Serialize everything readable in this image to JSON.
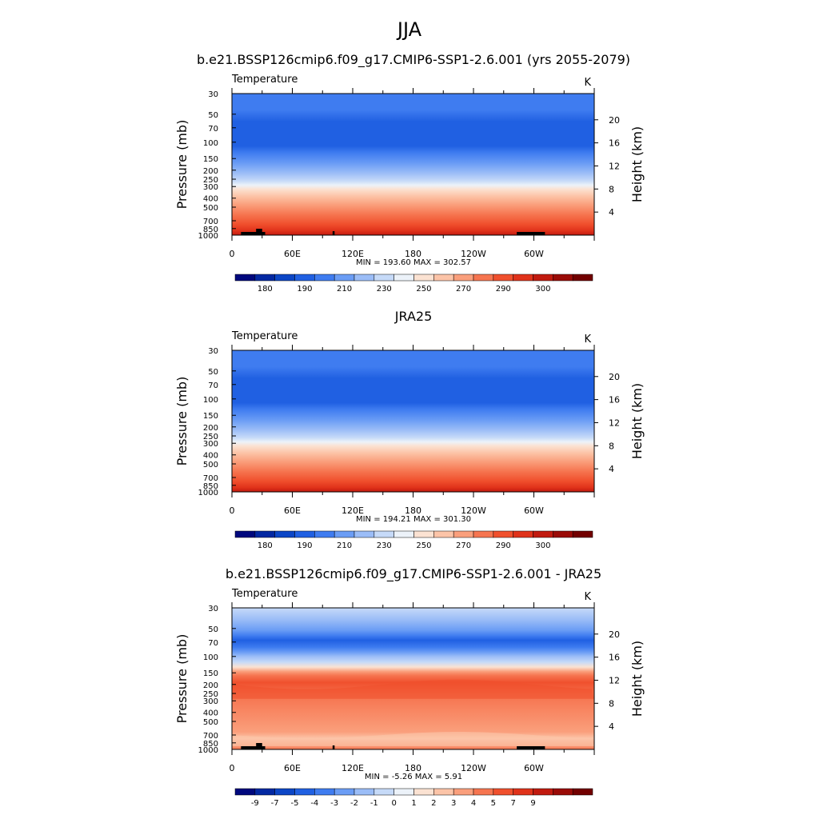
{
  "page_title": "JJA",
  "chart_data": [
    {
      "type": "heatmap",
      "title": "b.e21.BSSP126cmip6.f09_g17.CMIP6-SSP1-2.6.001 (yrs 2055-2079)",
      "left_label": "Temperature",
      "units_label": "K",
      "ylabel": "Pressure (mb)",
      "ylabel_right": "Height (km)",
      "x_ticks": [
        "0",
        "60E",
        "120E",
        "180",
        "120W",
        "60W"
      ],
      "x_range": [
        0,
        360
      ],
      "y_ticks": [
        "30",
        "50",
        "70",
        "100",
        "150",
        "200",
        "250",
        "300",
        "400",
        "500",
        "700",
        "850",
        "1000"
      ],
      "y_range": [
        30,
        1000
      ],
      "y_scale": "log",
      "right_ticks": [
        "20",
        "16",
        "12",
        "8",
        "4"
      ],
      "stats": "MIN = 193.60  MAX = 302.57",
      "colorbar_labels": [
        "180",
        "190",
        "210",
        "230",
        "250",
        "270",
        "290",
        "300"
      ],
      "colorbar_colors": [
        "#00087d",
        "#0328a2",
        "#0c46c6",
        "#2060e2",
        "#3f7cf0",
        "#6b9df5",
        "#9bbdf7",
        "#c6daf8",
        "#ecf2f9",
        "#fbe2d2",
        "#fcc4a8",
        "#fa9f7c",
        "#f67550",
        "#f0502d",
        "#e0321a",
        "#c11a0f",
        "#9a0b07",
        "#720000"
      ],
      "background_layers": [
        {
          "p": 30,
          "color": "#3f7cf0"
        },
        {
          "p": 45,
          "color": "#3f7cf0"
        },
        {
          "p": 60,
          "color": "#2060e2"
        },
        {
          "p": 110,
          "color": "#2060e2"
        },
        {
          "p": 130,
          "color": "#3f7cf0"
        },
        {
          "p": 170,
          "color": "#6b9df5"
        },
        {
          "p": 215,
          "color": "#9bbdf7"
        },
        {
          "p": 260,
          "color": "#c6daf8"
        },
        {
          "p": 290,
          "color": "#ecf2f9"
        },
        {
          "p": 320,
          "color": "#fbe2d2"
        },
        {
          "p": 380,
          "color": "#fcc4a8"
        },
        {
          "p": 470,
          "color": "#fa9f7c"
        },
        {
          "p": 600,
          "color": "#f67550"
        },
        {
          "p": 760,
          "color": "#f0502d"
        },
        {
          "p": 900,
          "color": "#e0321a"
        },
        {
          "p": 1000,
          "color": "#c11a0f"
        }
      ],
      "topography": true
    },
    {
      "type": "heatmap",
      "title": "JRA25",
      "left_label": "Temperature",
      "units_label": "K",
      "ylabel": "Pressure (mb)",
      "ylabel_right": "Height (km)",
      "x_ticks": [
        "0",
        "60E",
        "120E",
        "180",
        "120W",
        "60W"
      ],
      "x_range": [
        0,
        360
      ],
      "y_ticks": [
        "30",
        "50",
        "70",
        "100",
        "150",
        "200",
        "250",
        "300",
        "400",
        "500",
        "700",
        "850",
        "1000"
      ],
      "y_range": [
        30,
        1000
      ],
      "y_scale": "log",
      "right_ticks": [
        "20",
        "16",
        "12",
        "8",
        "4"
      ],
      "stats": "MIN = 194.21  MAX = 301.30",
      "colorbar_labels": [
        "180",
        "190",
        "210",
        "230",
        "250",
        "270",
        "290",
        "300"
      ],
      "colorbar_colors": [
        "#00087d",
        "#0328a2",
        "#0c46c6",
        "#2060e2",
        "#3f7cf0",
        "#6b9df5",
        "#9bbdf7",
        "#c6daf8",
        "#ecf2f9",
        "#fbe2d2",
        "#fcc4a8",
        "#fa9f7c",
        "#f67550",
        "#f0502d",
        "#e0321a",
        "#c11a0f",
        "#9a0b07",
        "#720000"
      ],
      "background_layers": [
        {
          "p": 30,
          "color": "#3f7cf0"
        },
        {
          "p": 45,
          "color": "#3f7cf0"
        },
        {
          "p": 60,
          "color": "#2060e2"
        },
        {
          "p": 110,
          "color": "#2060e2"
        },
        {
          "p": 130,
          "color": "#3f7cf0"
        },
        {
          "p": 170,
          "color": "#6b9df5"
        },
        {
          "p": 215,
          "color": "#9bbdf7"
        },
        {
          "p": 260,
          "color": "#c6daf8"
        },
        {
          "p": 290,
          "color": "#ecf2f9"
        },
        {
          "p": 320,
          "color": "#fbe2d2"
        },
        {
          "p": 380,
          "color": "#fcc4a8"
        },
        {
          "p": 470,
          "color": "#fa9f7c"
        },
        {
          "p": 600,
          "color": "#f67550"
        },
        {
          "p": 760,
          "color": "#f0502d"
        },
        {
          "p": 900,
          "color": "#e0321a"
        },
        {
          "p": 1000,
          "color": "#c11a0f"
        }
      ],
      "topography": false
    },
    {
      "type": "heatmap",
      "title": "b.e21.BSSP126cmip6.f09_g17.CMIP6-SSP1-2.6.001 - JRA25",
      "left_label": "Temperature",
      "units_label": "K",
      "ylabel": "Pressure (mb)",
      "ylabel_right": "Height (km)",
      "x_ticks": [
        "0",
        "60E",
        "120E",
        "180",
        "120W",
        "60W"
      ],
      "x_range": [
        0,
        360
      ],
      "y_ticks": [
        "30",
        "50",
        "70",
        "100",
        "150",
        "200",
        "250",
        "300",
        "400",
        "500",
        "700",
        "850",
        "1000"
      ],
      "y_range": [
        30,
        1000
      ],
      "y_scale": "log",
      "right_ticks": [
        "20",
        "16",
        "12",
        "8",
        "4"
      ],
      "stats": "MIN =  -5.26  MAX =   5.91",
      "colorbar_labels": [
        "-9",
        "-7",
        "-5",
        "-4",
        "-3",
        "-2",
        "-1",
        "0",
        "1",
        "2",
        "3",
        "4",
        "5",
        "7",
        "9"
      ],
      "colorbar_colors": [
        "#00087d",
        "#0328a2",
        "#0c46c6",
        "#2060e2",
        "#3f7cf0",
        "#6b9df5",
        "#9bbdf7",
        "#c6daf8",
        "#ecf2f9",
        "#fbe2d2",
        "#fcc4a8",
        "#fa9f7c",
        "#f67550",
        "#f0502d",
        "#e0321a",
        "#c11a0f",
        "#9a0b07",
        "#720000"
      ],
      "background_layers": [
        {
          "p": 30,
          "color": "#c6daf8"
        },
        {
          "p": 40,
          "color": "#9bbdf7"
        },
        {
          "p": 52,
          "color": "#6b9df5"
        },
        {
          "p": 60,
          "color": "#3f7cf0"
        },
        {
          "p": 67,
          "color": "#2060e2"
        },
        {
          "p": 80,
          "color": "#3f7cf0"
        },
        {
          "p": 90,
          "color": "#6b9df5"
        },
        {
          "p": 100,
          "color": "#9bbdf7"
        },
        {
          "p": 115,
          "color": "#c6daf8"
        },
        {
          "p": 130,
          "color": "#fbe2d2"
        },
        {
          "p": 145,
          "color": "#fa9f7c"
        },
        {
          "p": 160,
          "color": "#f67550"
        },
        {
          "p": 190,
          "color": "#f0502d"
        },
        {
          "p": 270,
          "color": "#f67550"
        },
        {
          "p": 650,
          "color": "#fa9f7c"
        },
        {
          "p": 760,
          "color": "#fcc4a8"
        },
        {
          "p": 900,
          "color": "#fa9f7c"
        },
        {
          "p": 1000,
          "color": "#f67550"
        }
      ],
      "topography": true
    }
  ]
}
